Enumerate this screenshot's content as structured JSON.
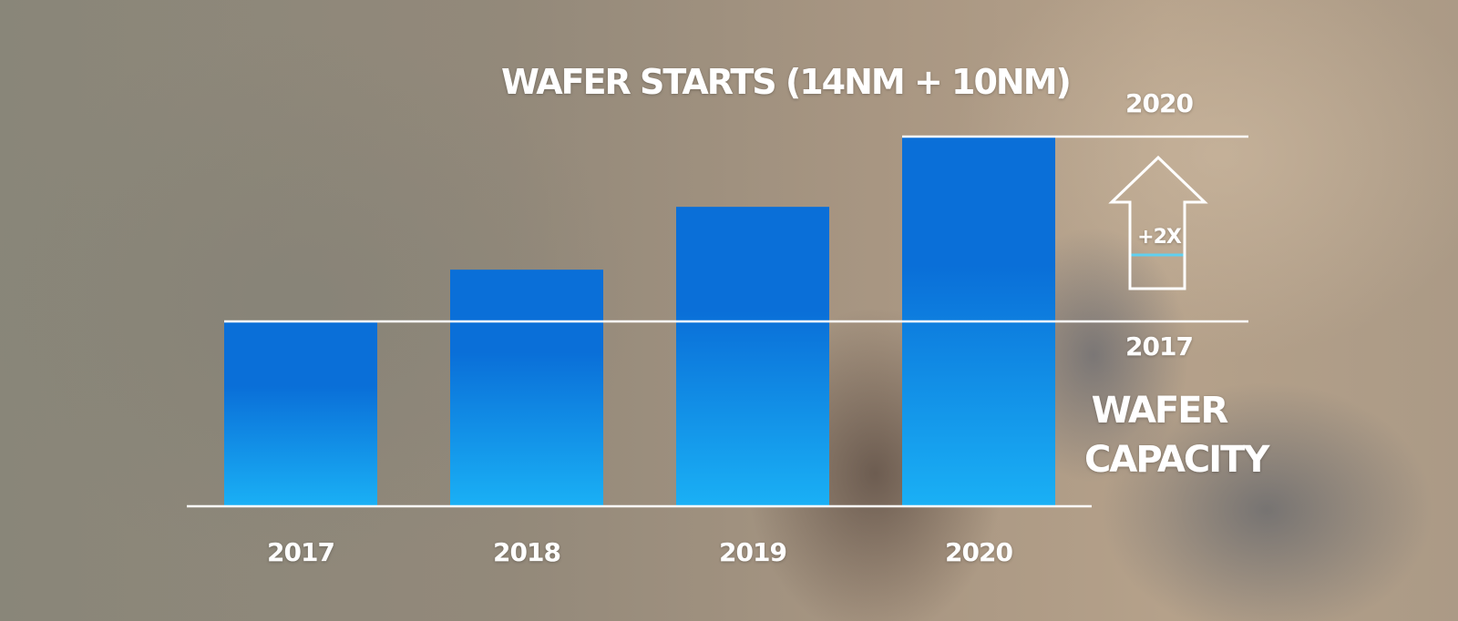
{
  "chart_data": {
    "type": "bar",
    "title": "WAFER STARTS (14NM + 10NM)",
    "categories": [
      "2017",
      "2018",
      "2019",
      "2020"
    ],
    "values": [
      1.0,
      1.28,
      1.62,
      2.0
    ],
    "ylim": [
      0,
      2.0
    ],
    "xlabel": "",
    "ylabel": "",
    "reference_lines": [
      {
        "label": "2020",
        "value": 2.0
      },
      {
        "label": "2017",
        "value": 1.0
      }
    ],
    "annotation": {
      "growth_label": "+2X"
    },
    "side_label": [
      "WAFER",
      "CAPACITY"
    ],
    "colors": {
      "bar_top": "#0a6fd8",
      "bar_bottom": "#1ab0f5",
      "axis": "#ffffff",
      "arrow_fill": "#5fd0f0"
    }
  }
}
